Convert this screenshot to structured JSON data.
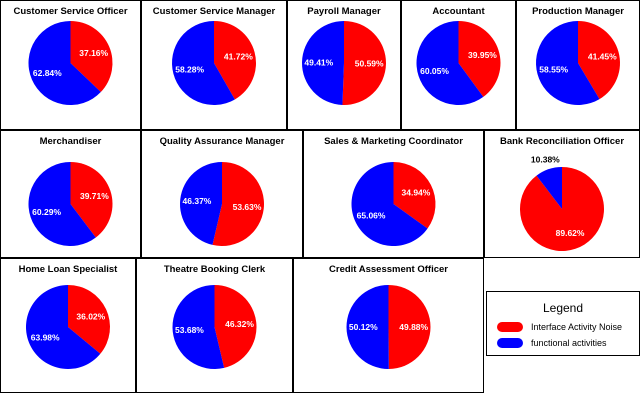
{
  "chart_data": [
    {
      "type": "pie",
      "title": "Customer Service Officer",
      "values": [
        37.16,
        62.84
      ],
      "labels": [
        "37.16%",
        "62.84%"
      ]
    },
    {
      "type": "pie",
      "title": "Customer Service Manager",
      "values": [
        41.72,
        58.28
      ],
      "labels": [
        "41.72%",
        "58.28%"
      ]
    },
    {
      "type": "pie",
      "title": "Payroll Manager",
      "values": [
        50.59,
        49.41
      ],
      "labels": [
        "50.59%",
        "49.41%"
      ]
    },
    {
      "type": "pie",
      "title": "Accountant",
      "values": [
        39.95,
        60.05
      ],
      "labels": [
        "39.95%",
        "60.05%"
      ]
    },
    {
      "type": "pie",
      "title": "Production Manager",
      "values": [
        41.45,
        58.55
      ],
      "labels": [
        "41.45%",
        "58.55%"
      ]
    },
    {
      "type": "pie",
      "title": "Merchandiser",
      "values": [
        39.71,
        60.29
      ],
      "labels": [
        "39.71%",
        "60.29%"
      ]
    },
    {
      "type": "pie",
      "title": "Quality Assurance Manager",
      "values": [
        53.63,
        46.37
      ],
      "labels": [
        "53.63%",
        "46.37%"
      ]
    },
    {
      "type": "pie",
      "title": "Sales & Marketing Coordinator",
      "values": [
        34.94,
        65.06
      ],
      "labels": [
        "34.94%",
        "65.06%"
      ]
    },
    {
      "type": "pie",
      "title": "Bank Reconciliation Officer",
      "values": [
        89.62,
        10.38
      ],
      "labels": [
        "89.62%",
        "10.38%"
      ]
    },
    {
      "type": "pie",
      "title": "Home Loan Specialist",
      "values": [
        36.02,
        63.98
      ],
      "labels": [
        "36.02%",
        "63.98%"
      ]
    },
    {
      "type": "pie",
      "title": "Theatre Booking Clerk",
      "values": [
        46.32,
        53.68
      ],
      "labels": [
        "46.32%",
        "53.68%"
      ]
    },
    {
      "type": "pie",
      "title": "Credit Assessment Officer",
      "values": [
        49.88,
        50.12
      ],
      "labels": [
        "49.88%",
        "50.12%"
      ]
    }
  ],
  "legend": {
    "title": "Legend",
    "placement": "bottom-right",
    "items": [
      {
        "label": "Interface  Activity  Noise",
        "color": "#ff0000"
      },
      {
        "label": "functional  activities",
        "color": "#0000ff"
      }
    ]
  },
  "colors": {
    "noise": "#ff0000",
    "functional": "#0000ff"
  }
}
